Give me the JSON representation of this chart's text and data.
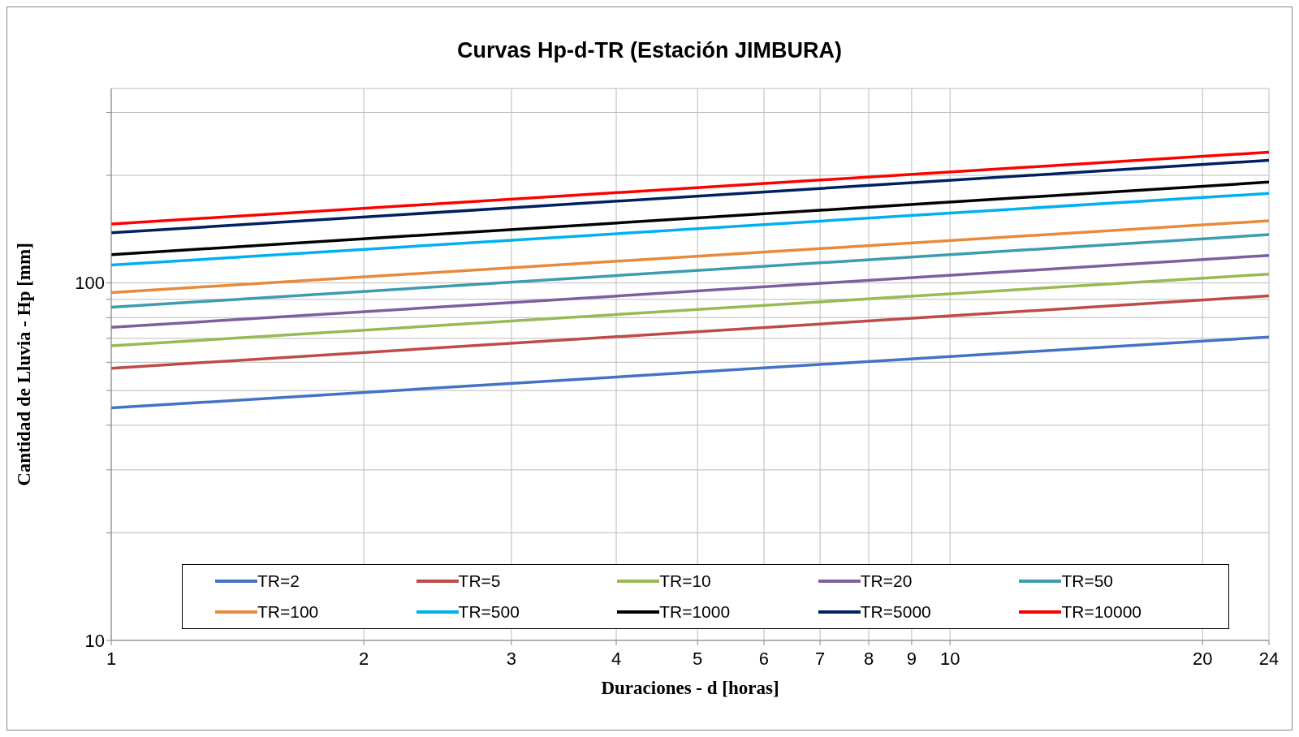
{
  "chart_data": {
    "type": "line",
    "title": "Curvas Hp-d-TR (Estación JIMBURA)",
    "xlabel": "Duraciones - d [horas]",
    "ylabel": "Cantidad de Lluvia - Hp [mm]",
    "log": "xy",
    "grid": true,
    "legend": "bottom",
    "marker": "none",
    "line_style": "solid",
    "xlim": [
      1,
      24
    ],
    "xticks": [
      1,
      2,
      3,
      4,
      5,
      6,
      7,
      8,
      9,
      10,
      20,
      24
    ],
    "ylim": [
      10,
      350
    ],
    "yticks": [
      10,
      {
        "value": 20,
        "label": null
      },
      {
        "value": 30,
        "label": null
      },
      {
        "value": 40,
        "label": null
      },
      {
        "value": 50,
        "label": null
      },
      {
        "value": 60,
        "label": null
      },
      {
        "value": 70,
        "label": null
      },
      {
        "value": 80,
        "label": null
      },
      {
        "value": 90,
        "label": null
      },
      100,
      {
        "value": 200,
        "label": null
      },
      {
        "value": 300,
        "label": null
      }
    ],
    "x": [
      1,
      24
    ],
    "series": [
      {
        "name": "TR=2",
        "color": "#4472c4",
        "values": [
          44.7,
          70.6
        ]
      },
      {
        "name": "TR=5",
        "color": "#be4b48",
        "values": [
          57.7,
          92.0
        ]
      },
      {
        "name": "TR=10",
        "color": "#98b954",
        "values": [
          66.7,
          105.9
        ]
      },
      {
        "name": "TR=20",
        "color": "#7d5fa0",
        "values": [
          75.1,
          119.4
        ]
      },
      {
        "name": "TR=50",
        "color": "#3c9cb0",
        "values": [
          85.5,
          136.5
        ]
      },
      {
        "name": "TR=100",
        "color": "#e88a3c",
        "values": [
          94.0,
          149.2
        ]
      },
      {
        "name": "TR=500",
        "color": "#00b0f0",
        "values": [
          112.2,
          178.1
        ]
      },
      {
        "name": "TR=1000",
        "color": "#000000",
        "values": [
          120.0,
          191.5
        ]
      },
      {
        "name": "TR=5000",
        "color": "#002060",
        "values": [
          138.1,
          220.3
        ]
      },
      {
        "name": "TR=10000",
        "color": "#ff0000",
        "values": [
          146.2,
          232.1
        ]
      }
    ]
  }
}
